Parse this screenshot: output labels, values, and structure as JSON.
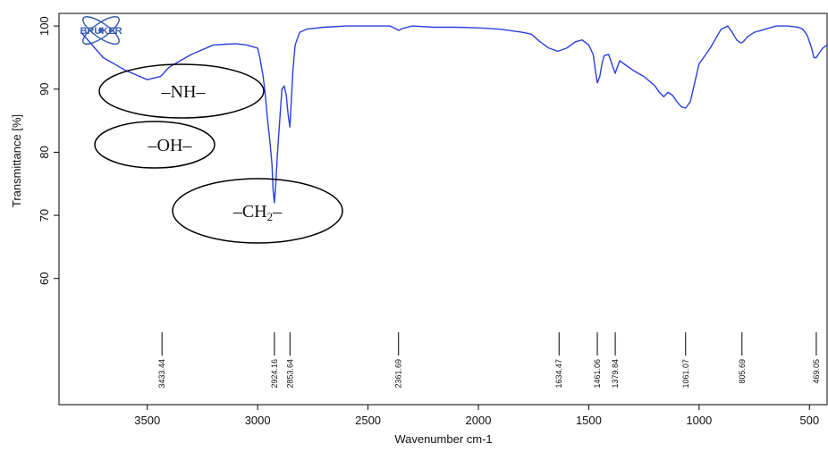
{
  "logo": {
    "text": "BRUKER"
  },
  "chart_data": {
    "type": "line",
    "xlabel": "Wavenumber cm-1",
    "ylabel": "Transmittance [%]",
    "xlim": [
      3900,
      420
    ],
    "ylim": [
      40,
      102
    ],
    "x_reversed": true,
    "grid": false,
    "line_color": "#2a3fe0",
    "x_ticks": [
      {
        "value": 3500,
        "label": "3500"
      },
      {
        "value": 3000,
        "label": "3000"
      },
      {
        "value": 2500,
        "label": "2500"
      },
      {
        "value": 2000,
        "label": "2000"
      },
      {
        "value": 1500,
        "label": "1500"
      },
      {
        "value": 1000,
        "label": "1000"
      },
      {
        "value": 500,
        "label": "500"
      }
    ],
    "y_ticks": [
      {
        "value": 100,
        "label": "100"
      },
      {
        "value": 90,
        "label": "90"
      },
      {
        "value": 80,
        "label": "80"
      },
      {
        "value": 70,
        "label": "70"
      },
      {
        "value": 60,
        "label": "60"
      }
    ],
    "series": [
      {
        "x": [
          3800,
          3700,
          3600,
          3500,
          3440,
          3400,
          3300,
          3200,
          3100,
          3050,
          3000,
          2990,
          2975,
          2965,
          2955,
          2945,
          2935,
          2930,
          2924,
          2918,
          2910,
          2900,
          2890,
          2880,
          2870,
          2862,
          2854,
          2848,
          2840,
          2830,
          2810,
          2780,
          2700,
          2600,
          2500,
          2400,
          2370,
          2361,
          2345,
          2300,
          2200,
          2100,
          2000,
          1900,
          1800,
          1760,
          1720,
          1680,
          1640,
          1600,
          1560,
          1530,
          1500,
          1480,
          1470,
          1461,
          1450,
          1440,
          1430,
          1410,
          1395,
          1380,
          1370,
          1360,
          1340,
          1300,
          1250,
          1200,
          1180,
          1160,
          1140,
          1120,
          1100,
          1080,
          1061,
          1040,
          1020,
          1000,
          980,
          950,
          900,
          870,
          850,
          830,
          810,
          800,
          780,
          750,
          700,
          650,
          600,
          550,
          530,
          510,
          490,
          480,
          469,
          460,
          440,
          420
        ],
        "y": [
          99,
          95,
          93,
          91.5,
          92,
          93.5,
          95.5,
          97,
          97.2,
          97,
          96.5,
          95,
          92,
          89,
          85,
          82,
          78,
          74,
          72,
          75,
          80,
          85,
          90,
          90.5,
          89,
          86,
          84,
          88,
          93,
          97,
          99,
          99.5,
          99.8,
          100,
          100,
          100,
          99.5,
          99.3,
          99.6,
          100,
          99.8,
          99.8,
          99.7,
          99.5,
          99,
          98.7,
          97.5,
          96.5,
          96,
          96.5,
          97.5,
          97.8,
          97,
          95.5,
          93,
          91,
          92,
          94,
          95.3,
          95.5,
          94,
          92.5,
          93.5,
          94.5,
          94,
          93,
          92,
          90.5,
          89.5,
          88.8,
          89.5,
          89,
          88,
          87.2,
          87,
          88,
          91,
          94,
          95,
          96.5,
          99.5,
          100,
          99,
          97.8,
          97.3,
          97.5,
          98.3,
          99,
          99.5,
          100,
          100,
          99.8,
          99.5,
          98.5,
          96.5,
          95,
          95,
          95.5,
          96.5,
          97
        ]
      }
    ],
    "peak_markers": [
      {
        "x": 3433.44,
        "label": "3433.44"
      },
      {
        "x": 2924.16,
        "label": "2924.16"
      },
      {
        "x": 2853.64,
        "label": "2853.64"
      },
      {
        "x": 2361.69,
        "label": "2361.69"
      },
      {
        "x": 1634.47,
        "label": "1634.47"
      },
      {
        "x": 1461.06,
        "label": "1461.06"
      },
      {
        "x": 1379.84,
        "label": "1379.84"
      },
      {
        "x": 1061.07,
        "label": "1061.07"
      },
      {
        "x": 805.69,
        "label": "805.69"
      },
      {
        "x": 469.05,
        "label": "469.05"
      }
    ],
    "annotations": [
      {
        "text": "–NH–"
      },
      {
        "text": "–OH–"
      },
      {
        "text": "–CH2–"
      }
    ]
  }
}
